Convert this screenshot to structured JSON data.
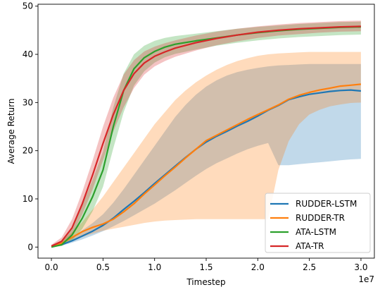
{
  "chart_data": {
    "type": "line",
    "xlabel": "Timestep",
    "ylabel": "Average Return",
    "x_offset_label": "1e7",
    "xlim": [
      -0.13,
      3.13
    ],
    "ylim": [
      -2.3,
      50.4
    ],
    "xticks": [
      0.0,
      0.5,
      1.0,
      1.5,
      2.0,
      2.5,
      3.0
    ],
    "xtick_labels": [
      "0.0",
      "0.5",
      "1.0",
      "1.5",
      "2.0",
      "2.5",
      "3.0"
    ],
    "yticks": [
      0,
      10,
      20,
      30,
      40,
      50
    ],
    "ytick_labels": [
      "0",
      "10",
      "20",
      "30",
      "40",
      "50"
    ],
    "grid": false,
    "legend_position": "bottom-right",
    "series": [
      {
        "name": "RUDDER-LSTM",
        "color": "#1f77b4",
        "x": [
          0.0,
          0.1,
          0.2,
          0.3,
          0.4,
          0.5,
          0.6,
          0.7,
          0.8,
          0.9,
          1.0,
          1.1,
          1.2,
          1.3,
          1.4,
          1.5,
          1.6,
          1.7,
          1.8,
          1.9,
          2.0,
          2.1,
          2.2,
          2.3,
          2.4,
          2.5,
          2.6,
          2.7,
          2.8,
          2.9,
          3.0
        ],
        "y": [
          0.1,
          0.5,
          1.3,
          2.3,
          3.3,
          4.5,
          6.0,
          7.8,
          9.5,
          11.3,
          13.2,
          15.0,
          16.8,
          18.6,
          20.3,
          21.8,
          23.0,
          24.0,
          25.1,
          26.1,
          27.2,
          28.4,
          29.4,
          30.6,
          31.2,
          31.7,
          32.0,
          32.3,
          32.5,
          32.6,
          32.4
        ],
        "lower": [
          0.0,
          0.3,
          0.9,
          1.6,
          2.4,
          3.3,
          4.3,
          5.4,
          6.6,
          7.8,
          9.0,
          10.4,
          11.8,
          13.3,
          14.8,
          16.2,
          17.4,
          18.4,
          19.4,
          20.3,
          21.0,
          21.6,
          17.0,
          17.0,
          17.2,
          17.4,
          17.6,
          17.8,
          18.0,
          18.2,
          18.3
        ],
        "upper": [
          0.3,
          0.9,
          2.0,
          3.5,
          5.0,
          6.8,
          9.2,
          12.0,
          15.0,
          18.0,
          21.0,
          24.0,
          27.0,
          29.5,
          31.6,
          33.3,
          34.6,
          35.6,
          36.3,
          36.8,
          37.2,
          37.5,
          37.7,
          37.8,
          37.9,
          38.0,
          38.0,
          38.0,
          38.0,
          38.0,
          38.0
        ]
      },
      {
        "name": "RUDDER-TR",
        "color": "#ff7f0e",
        "x": [
          0.0,
          0.1,
          0.2,
          0.3,
          0.4,
          0.5,
          0.6,
          0.7,
          0.8,
          0.9,
          1.0,
          1.1,
          1.2,
          1.3,
          1.4,
          1.5,
          1.6,
          1.7,
          1.8,
          1.9,
          2.0,
          2.1,
          2.2,
          2.3,
          2.4,
          2.5,
          2.6,
          2.7,
          2.8,
          2.9,
          3.0
        ],
        "y": [
          0.1,
          0.8,
          2.0,
          3.2,
          4.1,
          4.8,
          5.8,
          7.3,
          9.0,
          11.0,
          12.9,
          14.8,
          16.6,
          18.5,
          20.3,
          22.1,
          23.2,
          24.3,
          25.4,
          26.5,
          27.5,
          28.5,
          29.5,
          30.7,
          31.5,
          32.1,
          32.6,
          33.0,
          33.4,
          33.6,
          33.8
        ],
        "lower": [
          0.0,
          0.5,
          1.3,
          2.1,
          2.8,
          3.4,
          3.8,
          4.2,
          4.6,
          5.0,
          5.3,
          5.5,
          5.6,
          5.7,
          5.8,
          5.8,
          5.8,
          5.8,
          5.8,
          5.8,
          5.8,
          5.8,
          16.0,
          22.0,
          25.5,
          27.5,
          28.5,
          29.2,
          29.6,
          29.9,
          30.0
        ],
        "upper": [
          0.3,
          1.3,
          3.0,
          5.2,
          7.8,
          10.5,
          13.5,
          16.5,
          19.5,
          22.5,
          25.5,
          28.0,
          30.5,
          32.5,
          34.2,
          35.6,
          36.8,
          37.8,
          38.6,
          39.2,
          39.7,
          40.0,
          40.2,
          40.3,
          40.4,
          40.5,
          40.5,
          40.5,
          40.5,
          40.5,
          40.5
        ]
      },
      {
        "name": "ATA-LSTM",
        "color": "#2ca02c",
        "x": [
          0.0,
          0.1,
          0.2,
          0.3,
          0.4,
          0.5,
          0.55,
          0.6,
          0.7,
          0.8,
          0.9,
          1.0,
          1.1,
          1.2,
          1.4,
          1.6,
          1.8,
          2.0,
          2.2,
          2.4,
          2.6,
          2.8,
          3.0
        ],
        "y": [
          0.0,
          0.5,
          2.5,
          6.0,
          10.5,
          16.0,
          20.5,
          25.0,
          32.5,
          37.0,
          39.3,
          40.6,
          41.5,
          42.1,
          42.8,
          43.4,
          44.0,
          44.5,
          44.9,
          45.2,
          45.4,
          45.6,
          45.7
        ],
        "lower": [
          0.0,
          0.2,
          1.4,
          3.8,
          7.5,
          12.5,
          16.5,
          20.5,
          28.0,
          33.5,
          36.5,
          38.3,
          39.4,
          40.1,
          41.0,
          41.8,
          42.4,
          42.9,
          43.3,
          43.6,
          43.8,
          44.0,
          44.1
        ],
        "upper": [
          0.3,
          1.1,
          4.0,
          8.8,
          14.0,
          19.8,
          24.5,
          29.0,
          36.0,
          40.0,
          41.8,
          42.8,
          43.4,
          43.8,
          44.3,
          44.8,
          45.3,
          45.7,
          46.0,
          46.3,
          46.5,
          46.7,
          46.8
        ]
      },
      {
        "name": "ATA-TR",
        "color": "#d62728",
        "x": [
          0.0,
          0.1,
          0.2,
          0.3,
          0.4,
          0.5,
          0.6,
          0.7,
          0.8,
          0.9,
          1.0,
          1.1,
          1.2,
          1.4,
          1.6,
          1.8,
          2.0,
          2.2,
          2.4,
          2.6,
          2.8,
          3.0
        ],
        "y": [
          0.2,
          1.2,
          4.0,
          9.0,
          15.0,
          21.5,
          27.5,
          32.5,
          36.0,
          38.2,
          39.6,
          40.5,
          41.3,
          42.4,
          43.3,
          44.0,
          44.6,
          45.0,
          45.3,
          45.5,
          45.7,
          45.8
        ],
        "lower": [
          0.0,
          0.5,
          2.5,
          6.8,
          12.0,
          18.0,
          24.0,
          29.0,
          33.0,
          35.8,
          37.5,
          38.6,
          39.5,
          40.8,
          41.9,
          42.7,
          43.4,
          43.9,
          44.2,
          44.5,
          44.7,
          44.8
        ],
        "upper": [
          0.5,
          2.0,
          5.8,
          11.5,
          18.0,
          25.0,
          31.0,
          35.8,
          38.8,
          40.6,
          41.6,
          42.3,
          42.9,
          43.9,
          44.7,
          45.3,
          45.8,
          46.2,
          46.5,
          46.7,
          46.9,
          47.0
        ]
      }
    ]
  }
}
